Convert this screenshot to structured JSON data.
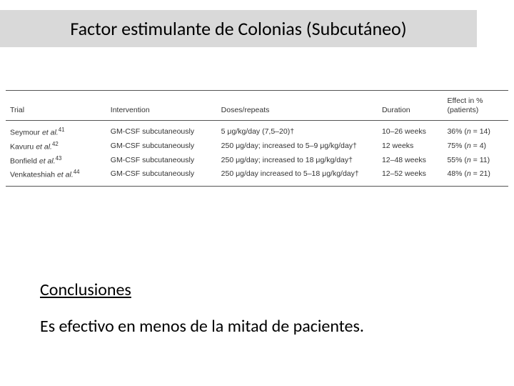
{
  "title": "Factor estimulante de Colonias (Subcutáneo)",
  "table": {
    "headers": {
      "trial": "Trial",
      "intervention": "Intervention",
      "doses": "Doses/repeats",
      "duration": "Duration",
      "effect": "Effect in %\n(patients)"
    },
    "rows": [
      {
        "trial": "Seymour et al.⁴¹",
        "intervention": "GM-CSF subcutaneously",
        "doses": "5 μg/kg/day (7,5–20)†",
        "duration": "10–26 weeks",
        "effect": "36% (n = 14)"
      },
      {
        "trial": "Kavuru et al.⁴²",
        "intervention": "GM-CSF subcutaneously",
        "doses": "250 μg/day; increased to 5–9 μg/kg/day†",
        "duration": "12 weeks",
        "effect": "75% (n = 4)"
      },
      {
        "trial": "Bonfield et al.⁴³",
        "intervention": "GM-CSF subcutaneously",
        "doses": "250 μg/day; increased to 18 μg/kg/day†",
        "duration": "12–48 weeks",
        "effect": "55% (n = 11)"
      },
      {
        "trial": "Venkateshiah et al.⁴⁴",
        "intervention": "GM-CSF subcutaneously",
        "doses": "250 μg/day increased to 5–18 μg/kg/day†",
        "duration": "12–52 weeks",
        "effect": "48% (n = 21)"
      }
    ]
  },
  "conclusions": {
    "heading": "Conclusiones",
    "body": "Es efectivo en menos de la mitad de pacientes."
  },
  "colors": {
    "title_band_bg": "#d9d9d9",
    "text": "#000000",
    "table_text": "#333333",
    "table_border": "#555555",
    "background": "#ffffff"
  },
  "fontsizes": {
    "title": 26,
    "table": 10.5,
    "conclusions": 24
  }
}
